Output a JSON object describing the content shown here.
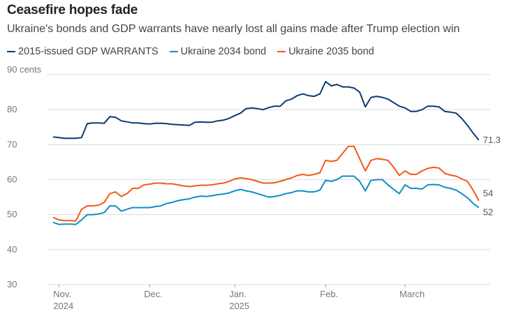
{
  "chart_data": {
    "type": "line",
    "title": "Ceasefire hopes fade",
    "subtitle": "Ukraine's bonds and GDP warrants have nearly lost all gains made after Trump election win",
    "yunit": "cents",
    "ylim": [
      30,
      90
    ],
    "yticks": [
      30,
      40,
      50,
      60,
      70,
      80,
      90
    ],
    "yticklabels": [
      "30",
      "40",
      "50",
      "60",
      "70",
      "80",
      "90 cents"
    ],
    "xlim": [
      -1,
      77
    ],
    "xticks": [
      {
        "t": 1,
        "line1": "Nov.",
        "line2": "2024"
      },
      {
        "t": 17,
        "line1": "Dec.",
        "line2": ""
      },
      {
        "t": 32,
        "line1": "Jan.",
        "line2": "2025"
      },
      {
        "t": 48,
        "line1": "Feb.",
        "line2": ""
      },
      {
        "t": 62,
        "line1": "March",
        "line2": ""
      }
    ],
    "series": [
      {
        "name": "2015-issued GDP WARRANTS",
        "color": "#0d3a73",
        "end_label": "71.3",
        "points": [
          [
            0,
            72.2
          ],
          [
            1,
            72
          ],
          [
            2,
            71.8
          ],
          [
            3,
            71.8
          ],
          [
            4,
            71.8
          ],
          [
            5,
            72
          ],
          [
            6,
            76
          ],
          [
            7,
            76.2
          ],
          [
            8,
            76.2
          ],
          [
            9,
            76.1
          ],
          [
            10,
            78
          ],
          [
            11,
            77.8
          ],
          [
            12,
            76.8
          ],
          [
            13,
            76.5
          ],
          [
            14,
            76.2
          ],
          [
            15,
            76.2
          ],
          [
            16,
            76
          ],
          [
            17,
            75.9
          ],
          [
            18,
            76.1
          ],
          [
            19,
            76.1
          ],
          [
            20,
            76
          ],
          [
            21,
            75.8
          ],
          [
            22,
            75.7
          ],
          [
            23,
            75.6
          ],
          [
            24,
            75.5
          ],
          [
            25,
            76.4
          ],
          [
            26,
            76.5
          ],
          [
            27,
            76.4
          ],
          [
            28,
            76.4
          ],
          [
            29,
            76.8
          ],
          [
            30,
            77
          ],
          [
            31,
            77.5
          ],
          [
            32,
            78.3
          ],
          [
            33,
            79
          ],
          [
            34,
            80.3
          ],
          [
            35,
            80.5
          ],
          [
            36,
            80.3
          ],
          [
            37,
            80
          ],
          [
            38,
            80.6
          ],
          [
            39,
            81
          ],
          [
            40,
            81
          ],
          [
            41,
            82.5
          ],
          [
            42,
            83
          ],
          [
            43,
            84
          ],
          [
            44,
            84.5
          ],
          [
            45,
            84
          ],
          [
            46,
            83.8
          ],
          [
            47,
            84.5
          ],
          [
            48,
            88
          ],
          [
            49,
            86.8
          ],
          [
            50,
            87.2
          ],
          [
            51,
            86.5
          ],
          [
            52,
            86.5
          ],
          [
            53,
            86.2
          ],
          [
            54,
            85
          ],
          [
            55,
            80.8
          ],
          [
            56,
            83.5
          ],
          [
            57,
            83.8
          ],
          [
            58,
            83.5
          ],
          [
            59,
            83
          ],
          [
            60,
            82
          ],
          [
            61,
            81
          ],
          [
            62,
            80.5
          ],
          [
            63,
            79.5
          ],
          [
            64,
            79.5
          ],
          [
            65,
            80
          ],
          [
            66,
            81
          ],
          [
            67,
            81
          ],
          [
            68,
            80.8
          ],
          [
            69,
            79.5
          ],
          [
            70,
            79.3
          ],
          [
            71,
            79
          ],
          [
            72,
            77.5
          ],
          [
            73,
            75.5
          ],
          [
            74,
            73.3
          ],
          [
            75,
            71.3
          ]
        ]
      },
      {
        "name": "Ukraine 2034 bond",
        "color": "#0e8fc4",
        "end_label": "52",
        "points": [
          [
            0,
            47.8
          ],
          [
            1,
            47.2
          ],
          [
            2,
            47.3
          ],
          [
            3,
            47.3
          ],
          [
            4,
            47.2
          ],
          [
            5,
            48.5
          ],
          [
            6,
            50
          ],
          [
            7,
            50
          ],
          [
            8,
            50.2
          ],
          [
            9,
            50.6
          ],
          [
            10,
            52.5
          ],
          [
            11,
            52.5
          ],
          [
            12,
            51
          ],
          [
            13,
            51.5
          ],
          [
            14,
            52
          ],
          [
            15,
            52
          ],
          [
            16,
            52
          ],
          [
            17,
            52
          ],
          [
            18,
            52.3
          ],
          [
            19,
            52.5
          ],
          [
            20,
            53.2
          ],
          [
            21,
            53.5
          ],
          [
            22,
            54
          ],
          [
            23,
            54.3
          ],
          [
            24,
            54.5
          ],
          [
            25,
            55
          ],
          [
            26,
            55.3
          ],
          [
            27,
            55.2
          ],
          [
            28,
            55.4
          ],
          [
            29,
            55.7
          ],
          [
            30,
            55.9
          ],
          [
            31,
            56.2
          ],
          [
            32,
            56.8
          ],
          [
            33,
            57.2
          ],
          [
            34,
            56.8
          ],
          [
            35,
            56.5
          ],
          [
            36,
            56
          ],
          [
            37,
            55.5
          ],
          [
            38,
            55
          ],
          [
            39,
            55.2
          ],
          [
            40,
            55.5
          ],
          [
            41,
            56
          ],
          [
            42,
            56.3
          ],
          [
            43,
            56.8
          ],
          [
            44,
            56.8
          ],
          [
            45,
            56.5
          ],
          [
            46,
            56.5
          ],
          [
            47,
            57
          ],
          [
            48,
            59.8
          ],
          [
            49,
            59.5
          ],
          [
            50,
            60
          ],
          [
            51,
            61
          ],
          [
            52,
            61
          ],
          [
            53,
            61
          ],
          [
            54,
            59.5
          ],
          [
            55,
            56.8
          ],
          [
            56,
            59.8
          ],
          [
            57,
            60
          ],
          [
            58,
            60
          ],
          [
            59,
            58.5
          ],
          [
            60,
            57.2
          ],
          [
            61,
            56
          ],
          [
            62,
            58.5
          ],
          [
            63,
            57.5
          ],
          [
            64,
            57.5
          ],
          [
            65,
            57.3
          ],
          [
            66,
            58.5
          ],
          [
            67,
            58.6
          ],
          [
            68,
            58.5
          ],
          [
            69,
            57.8
          ],
          [
            70,
            57.5
          ],
          [
            71,
            57
          ],
          [
            72,
            56
          ],
          [
            73,
            54.8
          ],
          [
            74,
            53.2
          ],
          [
            75,
            52
          ]
        ]
      },
      {
        "name": "Ukraine 2035 bond",
        "color": "#f25a15",
        "end_label": "54",
        "points": [
          [
            0,
            49.2
          ],
          [
            1,
            48.5
          ],
          [
            2,
            48.3
          ],
          [
            3,
            48.3
          ],
          [
            4,
            48.2
          ],
          [
            5,
            51.5
          ],
          [
            6,
            52.5
          ],
          [
            7,
            52.5
          ],
          [
            8,
            52.7
          ],
          [
            9,
            53.5
          ],
          [
            10,
            56
          ],
          [
            11,
            56.5
          ],
          [
            12,
            55.2
          ],
          [
            13,
            56
          ],
          [
            14,
            57.5
          ],
          [
            15,
            57.5
          ],
          [
            16,
            58.5
          ],
          [
            17,
            58.7
          ],
          [
            18,
            59
          ],
          [
            19,
            59
          ],
          [
            20,
            58.8
          ],
          [
            21,
            58.8
          ],
          [
            22,
            58.5
          ],
          [
            23,
            58.2
          ],
          [
            24,
            58
          ],
          [
            25,
            58.2
          ],
          [
            26,
            58.4
          ],
          [
            27,
            58.4
          ],
          [
            28,
            58.5
          ],
          [
            29,
            58.8
          ],
          [
            30,
            59
          ],
          [
            31,
            59.5
          ],
          [
            32,
            60.2
          ],
          [
            33,
            60.5
          ],
          [
            34,
            60.3
          ],
          [
            35,
            60
          ],
          [
            36,
            59.5
          ],
          [
            37,
            59
          ],
          [
            38,
            59
          ],
          [
            39,
            59.1
          ],
          [
            40,
            59.5
          ],
          [
            41,
            60
          ],
          [
            42,
            60.5
          ],
          [
            43,
            61.2
          ],
          [
            44,
            61.5
          ],
          [
            45,
            61.2
          ],
          [
            46,
            61.5
          ],
          [
            47,
            62
          ],
          [
            48,
            65.5
          ],
          [
            49,
            65.2
          ],
          [
            50,
            65.5
          ],
          [
            51,
            67.5
          ],
          [
            52,
            69.5
          ],
          [
            53,
            69.5
          ],
          [
            54,
            66
          ],
          [
            55,
            62.5
          ],
          [
            56,
            65.5
          ],
          [
            57,
            66
          ],
          [
            58,
            65.8
          ],
          [
            59,
            65.5
          ],
          [
            60,
            63.5
          ],
          [
            61,
            61.2
          ],
          [
            62,
            62.5
          ],
          [
            63,
            61.5
          ],
          [
            64,
            61.5
          ],
          [
            65,
            62.5
          ],
          [
            66,
            63.2
          ],
          [
            67,
            63.5
          ],
          [
            68,
            63.3
          ],
          [
            69,
            61.8
          ],
          [
            70,
            61.3
          ],
          [
            71,
            61
          ],
          [
            72,
            60.2
          ],
          [
            73,
            59.5
          ],
          [
            74,
            57
          ],
          [
            75,
            54
          ]
        ]
      }
    ]
  }
}
